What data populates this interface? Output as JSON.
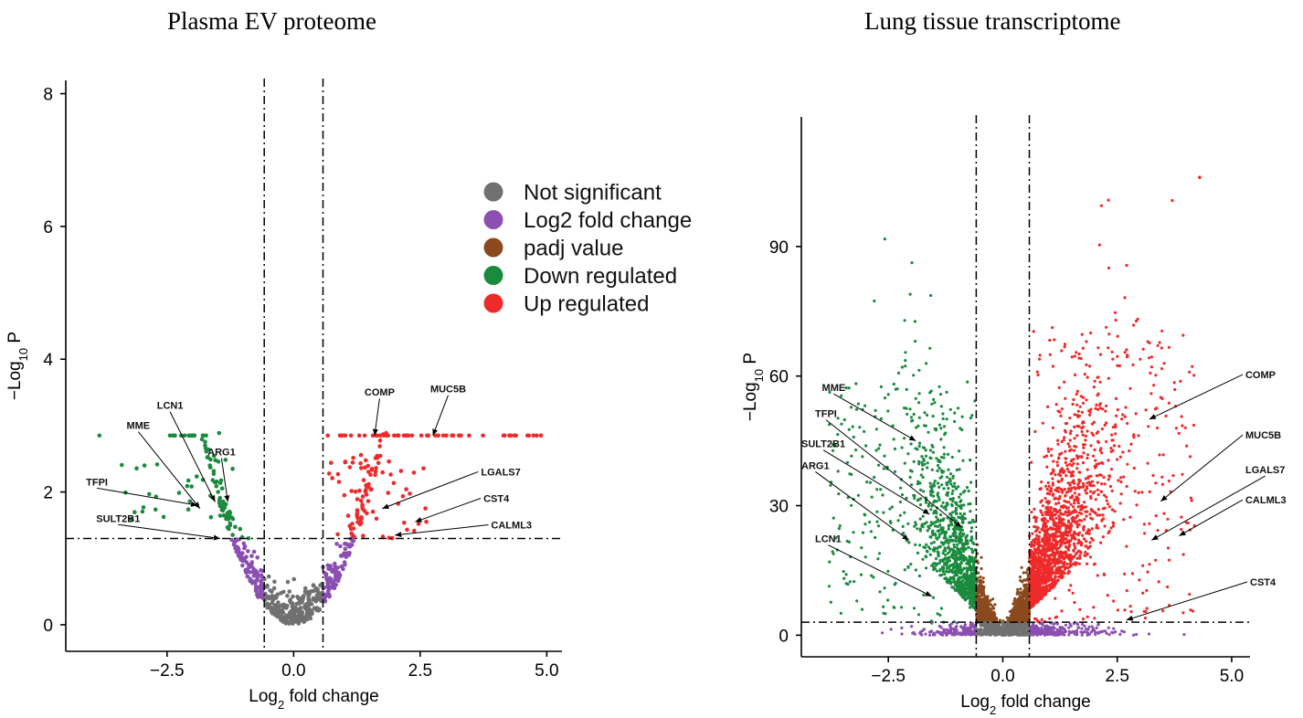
{
  "titles": {
    "left": "Plasma EV proteome",
    "right": "Lung tissue transcriptome"
  },
  "legend": {
    "items": [
      {
        "label": "Not significant",
        "color": "#707070"
      },
      {
        "label": "Log2 fold change",
        "color": "#8a4fb0"
      },
      {
        "label": "padj value",
        "color": "#8b4a1e"
      },
      {
        "label": "Down regulated",
        "color": "#1a8a3e"
      },
      {
        "label": "Up regulated",
        "color": "#ee2a2a"
      }
    ]
  },
  "chart_data": [
    {
      "type": "scatter",
      "title": "Plasma EV proteome",
      "xlabel": "Log2 fold change",
      "ylabel": "−Log10 P",
      "xlim": [
        -4.5,
        5.3
      ],
      "ylim": [
        -0.4,
        8.2
      ],
      "xticks": [
        -2.5,
        0.0,
        2.5,
        5.0
      ],
      "xtick_labels": [
        "−2.5",
        "0.0",
        "2.5",
        "5.0"
      ],
      "yticks": [
        0,
        2,
        4,
        6,
        8
      ],
      "ytick_labels": [
        "0",
        "2",
        "4",
        "6",
        "8"
      ],
      "thresholds": {
        "x": [
          -0.58,
          0.58
        ],
        "y": 1.3
      },
      "labeled_genes": [
        {
          "name": "TFPI",
          "x": -1.9,
          "y": 1.8,
          "label_x": -4.1,
          "label_y": 2.1
        },
        {
          "name": "MME",
          "x": -1.85,
          "y": 1.75,
          "label_x": -3.3,
          "label_y": 2.95
        },
        {
          "name": "LCN1",
          "x": -1.55,
          "y": 1.85,
          "label_x": -2.7,
          "label_y": 3.25
        },
        {
          "name": "ARG1",
          "x": -1.3,
          "y": 1.85,
          "label_x": -1.7,
          "label_y": 2.55
        },
        {
          "name": "SULT2B1",
          "x": -1.45,
          "y": 1.3,
          "label_x": -3.9,
          "label_y": 1.55
        },
        {
          "name": "COMP",
          "x": 1.6,
          "y": 2.85,
          "label_x": 1.4,
          "label_y": 3.45
        },
        {
          "name": "MUC5B",
          "x": 2.75,
          "y": 2.85,
          "label_x": 2.7,
          "label_y": 3.5
        },
        {
          "name": "LGALS7",
          "x": 1.75,
          "y": 1.75,
          "label_x": 3.7,
          "label_y": 2.25
        },
        {
          "name": "CST4",
          "x": 2.4,
          "y": 1.55,
          "label_x": 3.75,
          "label_y": 1.85
        },
        {
          "name": "CALML3",
          "x": 2.0,
          "y": 1.35,
          "label_x": 3.9,
          "label_y": 1.45
        }
      ]
    },
    {
      "type": "scatter",
      "title": "Lung tissue transcriptome",
      "xlabel": "Log2 fold change",
      "ylabel": "−Log10 P",
      "xlim": [
        -4.4,
        5.4
      ],
      "ylim": [
        -5,
        120
      ],
      "xticks": [
        -2.5,
        0.0,
        2.5,
        5.0
      ],
      "xtick_labels": [
        "−2.5",
        "0.0",
        "2.5",
        "5.0"
      ],
      "yticks": [
        0,
        30,
        60,
        90
      ],
      "ytick_labels": [
        "0",
        "30",
        "60",
        "90"
      ],
      "thresholds": {
        "x": [
          -0.58,
          0.58
        ],
        "y": 3
      },
      "labeled_genes": [
        {
          "name": "MME",
          "x": -1.9,
          "y": 45,
          "label_x": -3.95,
          "label_y": 56.5
        },
        {
          "name": "TFPI",
          "x": -0.9,
          "y": 25,
          "label_x": -4.1,
          "label_y": 50.5
        },
        {
          "name": "SULT2B1",
          "x": -1.6,
          "y": 28,
          "label_x": -4.4,
          "label_y": 43.5
        },
        {
          "name": "ARG1",
          "x": -2.05,
          "y": 22,
          "label_x": -4.4,
          "label_y": 38.5
        },
        {
          "name": "LCN1",
          "x": -1.55,
          "y": 9,
          "label_x": -4.1,
          "label_y": 21.5
        },
        {
          "name": "COMP",
          "x": 3.2,
          "y": 50,
          "label_x": 5.3,
          "label_y": 59.5
        },
        {
          "name": "MUC5B",
          "x": 3.45,
          "y": 31,
          "label_x": 5.3,
          "label_y": 45.5
        },
        {
          "name": "LGALS7",
          "x": 3.25,
          "y": 22,
          "label_x": 5.3,
          "label_y": 37.5
        },
        {
          "name": "CALML3",
          "x": 3.85,
          "y": 23,
          "label_x": 5.3,
          "label_y": 30.5
        },
        {
          "name": "CST4",
          "x": 2.7,
          "y": 3.5,
          "label_x": 5.4,
          "label_y": 11.5
        }
      ]
    }
  ]
}
